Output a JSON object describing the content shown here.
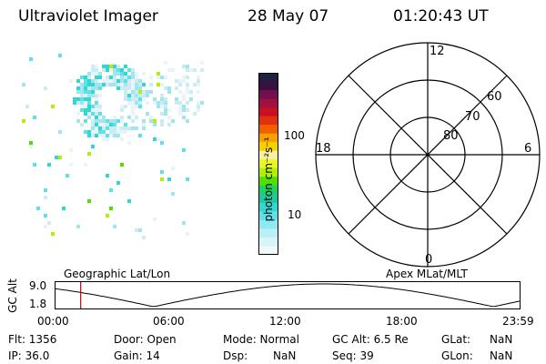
{
  "header": {
    "instrument": "Ultraviolet Imager",
    "date": "28 May 07",
    "time": "01:20:43 UT"
  },
  "colorbar": {
    "unit_label": "photon cm⁻²s⁻¹",
    "ticks": [
      "100",
      "10"
    ],
    "colors": [
      "#202040",
      "#3a1040",
      "#701050",
      "#a01040",
      "#c81020",
      "#e03010",
      "#f06000",
      "#f8a000",
      "#f8d000",
      "#f8f0a0",
      "#e8f820",
      "#b0f000",
      "#50e000",
      "#20d060",
      "#20c8a0",
      "#30d8d0",
      "#60e0e8",
      "#90e8f0",
      "#b8f0f4",
      "#d8f4f8",
      "#f0f8fc"
    ]
  },
  "polar_plot": {
    "mlt_labels": {
      "top": "12",
      "left": "18",
      "right": "6",
      "bottom": "0"
    },
    "lat_labels": [
      "60",
      "70",
      "80"
    ]
  },
  "timeline": {
    "axis_title": "GC Alt",
    "y_ticks": [
      "9.0",
      "1.8"
    ],
    "left_label": "Geographic Lat/Lon",
    "right_label": "Apex MLat/MLT",
    "time_ticks": [
      "00:00",
      "06:00",
      "12:00",
      "18:00",
      "23:59"
    ],
    "marker_time_hours": 1.345
  },
  "status": {
    "flt": "Flt: 1356",
    "ip": "IP: 36.0",
    "door": "Door: Open",
    "gain": "Gain: 14",
    "mode": "Mode: Normal",
    "dsp_label": "Dsp:",
    "dsp_value": "NaN",
    "gcalt": "GC Alt: 6.5 Re",
    "seq": "Seq: 39",
    "glat_label": "GLat:",
    "glat_value": "NaN",
    "glon_label": "GLon:",
    "glon_value": "NaN"
  }
}
